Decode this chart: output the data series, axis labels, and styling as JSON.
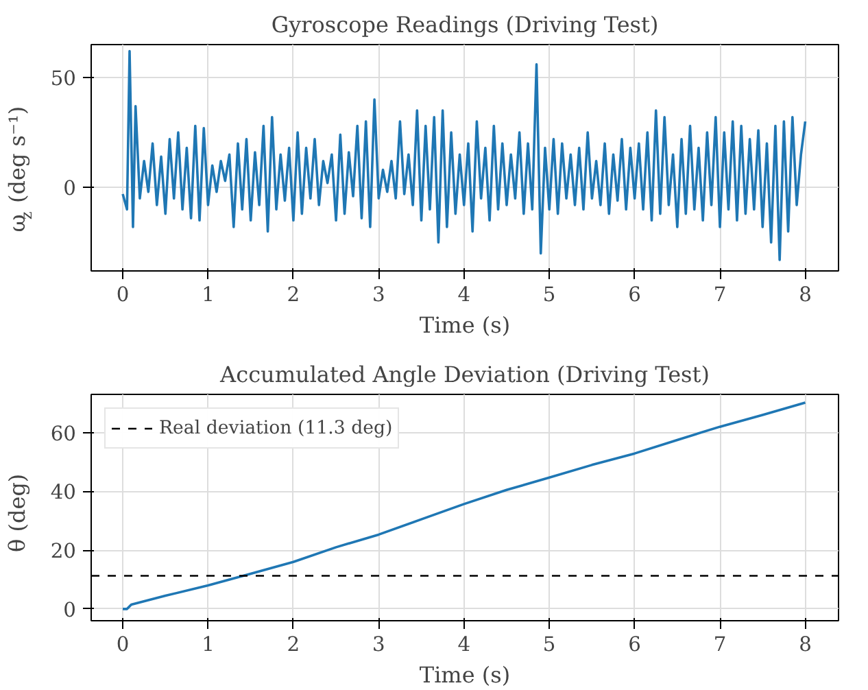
{
  "chart_data": [
    {
      "type": "line",
      "title": "Gyroscope Readings (Driving Test)",
      "xlabel": "Time (s)",
      "ylabel": "ω$_{z}$ (deg s⁻¹)",
      "x": [
        0,
        0.05,
        0.08,
        0.12,
        0.15,
        0.2,
        0.25,
        0.3,
        0.35,
        0.4,
        0.45,
        0.5,
        0.55,
        0.6,
        0.65,
        0.7,
        0.75,
        0.8,
        0.85,
        0.9,
        0.95,
        1.0,
        1.05,
        1.1,
        1.15,
        1.2,
        1.25,
        1.3,
        1.35,
        1.4,
        1.45,
        1.5,
        1.55,
        1.6,
        1.65,
        1.7,
        1.75,
        1.8,
        1.85,
        1.9,
        1.95,
        2.0,
        2.05,
        2.1,
        2.15,
        2.2,
        2.25,
        2.3,
        2.35,
        2.4,
        2.45,
        2.5,
        2.55,
        2.6,
        2.65,
        2.7,
        2.75,
        2.8,
        2.85,
        2.9,
        2.95,
        3.0,
        3.05,
        3.1,
        3.15,
        3.2,
        3.25,
        3.3,
        3.35,
        3.4,
        3.45,
        3.5,
        3.55,
        3.6,
        3.65,
        3.7,
        3.75,
        3.8,
        3.85,
        3.9,
        3.95,
        4.0,
        4.05,
        4.1,
        4.15,
        4.2,
        4.25,
        4.3,
        4.35,
        4.4,
        4.45,
        4.5,
        4.55,
        4.6,
        4.65,
        4.7,
        4.75,
        4.8,
        4.85,
        4.9,
        4.95,
        5.0,
        5.05,
        5.1,
        5.15,
        5.2,
        5.25,
        5.3,
        5.35,
        5.4,
        5.45,
        5.5,
        5.55,
        5.6,
        5.65,
        5.7,
        5.75,
        5.8,
        5.85,
        5.9,
        5.95,
        6.0,
        6.05,
        6.1,
        6.15,
        6.2,
        6.25,
        6.3,
        6.35,
        6.4,
        6.45,
        6.5,
        6.55,
        6.6,
        6.65,
        6.7,
        6.75,
        6.8,
        6.85,
        6.9,
        6.95,
        7.0,
        7.05,
        7.1,
        7.15,
        7.2,
        7.25,
        7.3,
        7.35,
        7.4,
        7.45,
        7.5,
        7.55,
        7.6,
        7.65,
        7.7,
        7.75,
        7.8,
        7.85,
        7.9,
        7.95,
        8.0
      ],
      "series": [
        {
          "color": "#1f77b4",
          "values": [
            -3,
            -10,
            62,
            -18,
            37,
            -5,
            12,
            -2,
            20,
            -8,
            14,
            -12,
            22,
            -5,
            25,
            -10,
            18,
            -14,
            28,
            -15,
            27,
            -8,
            10,
            -2,
            12,
            3,
            15,
            -18,
            20,
            -10,
            22,
            -15,
            16,
            -8,
            28,
            -20,
            32,
            -10,
            15,
            -6,
            18,
            -15,
            25,
            -12,
            18,
            -5,
            22,
            -8,
            12,
            2,
            15,
            -15,
            24,
            -12,
            16,
            -4,
            28,
            -14,
            30,
            -18,
            40,
            -5,
            8,
            -2,
            12,
            -5,
            30,
            -3,
            15,
            -8,
            35,
            -15,
            28,
            -10,
            32,
            -25,
            35,
            -18,
            25,
            -12,
            15,
            -8,
            20,
            -20,
            30,
            -5,
            18,
            -15,
            28,
            -10,
            20,
            -8,
            15,
            -5,
            25,
            -12,
            20,
            -10,
            56,
            -30,
            18,
            -10,
            22,
            -12,
            20,
            -5,
            15,
            -8,
            18,
            -10,
            25,
            -5,
            12,
            -8,
            20,
            -12,
            15,
            -6,
            22,
            -10,
            18,
            -5,
            20,
            -10,
            25,
            -15,
            35,
            -12,
            32,
            -8,
            15,
            -18,
            22,
            -12,
            28,
            -10,
            18,
            -15,
            25,
            -8,
            32,
            -18,
            25,
            -10,
            30,
            -15,
            28,
            -12,
            22,
            -10,
            26,
            -18,
            20,
            -25,
            28,
            -33,
            30,
            -20,
            32,
            -8,
            15,
            30
          ]
        }
      ],
      "xlim": [
        -0.37,
        8.39
      ],
      "ylim": [
        -38,
        65
      ],
      "xticks": [
        0,
        1,
        2,
        3,
        4,
        5,
        6,
        7,
        8
      ],
      "yticks": [
        0,
        50
      ],
      "grid": true
    },
    {
      "type": "line",
      "title": "Accumulated Angle Deviation (Driving Test)",
      "xlabel": "Time (s)",
      "ylabel": "θ (deg)",
      "x": [
        0,
        0.05,
        0.1,
        0.5,
        1,
        1.5,
        2,
        2.5,
        3,
        3.5,
        4,
        4.5,
        5,
        5.5,
        6,
        6.5,
        7,
        7.5,
        8
      ],
      "series": [
        {
          "color": "#1f77b4",
          "values": [
            0,
            0,
            1.5,
            4.5,
            8,
            12,
            16,
            21,
            25.3,
            30.5,
            35.7,
            40.5,
            44.7,
            49,
            52.9,
            57.5,
            62,
            66,
            70.2
          ]
        }
      ],
      "ref_lines": [
        {
          "axis": "y",
          "value": 11.3,
          "label": "Real deviation (11.3 deg)",
          "color": "#000000",
          "line_style": "dashed"
        }
      ],
      "legend": "top left",
      "xlim": [
        -0.37,
        8.39
      ],
      "ylim": [
        -4,
        73
      ],
      "xticks": [
        0,
        1,
        2,
        3,
        4,
        5,
        6,
        7,
        8
      ],
      "yticks": [
        0,
        20,
        40,
        60
      ],
      "grid": true
    }
  ]
}
